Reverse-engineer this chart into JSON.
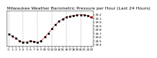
{
  "title": "Milwaukee Weather Barometric Pressure per Hour (Last 24 Hours)",
  "hours": [
    0,
    1,
    2,
    3,
    4,
    5,
    6,
    7,
    8,
    9,
    10,
    11,
    12,
    13,
    14,
    15,
    16,
    17,
    18,
    19,
    20,
    21,
    22,
    23
  ],
  "pressure": [
    29.68,
    29.62,
    29.57,
    29.5,
    29.46,
    29.47,
    29.5,
    29.48,
    29.46,
    29.5,
    29.6,
    29.7,
    29.82,
    29.93,
    30.02,
    30.09,
    30.13,
    30.16,
    30.18,
    30.19,
    30.2,
    30.19,
    30.17,
    30.14
  ],
  "line_color": "#cc0000",
  "marker_color": "#111111",
  "background_color": "#ffffff",
  "grid_color": "#999999",
  "ylim_min": 29.35,
  "ylim_max": 30.3,
  "yticks": [
    29.4,
    29.5,
    29.6,
    29.7,
    29.8,
    29.9,
    30.0,
    30.1,
    30.2
  ],
  "title_fontsize": 4.5,
  "tick_fontsize": 3.2,
  "grid_positions": [
    0,
    4,
    8,
    12,
    16,
    20
  ],
  "x_tick_positions": [
    0,
    1,
    2,
    3,
    4,
    5,
    6,
    7,
    8,
    9,
    10,
    11,
    12,
    13,
    14,
    15,
    16,
    17,
    18,
    19,
    20,
    21,
    22,
    23
  ],
  "x_tick_labels": [
    "0",
    "1",
    "2",
    "3",
    "4",
    "5",
    "6",
    "7",
    "8",
    "9",
    "10",
    "11",
    "12",
    "13",
    "14",
    "15",
    "16",
    "17",
    "18",
    "19",
    "20",
    "21",
    "22",
    "23"
  ]
}
